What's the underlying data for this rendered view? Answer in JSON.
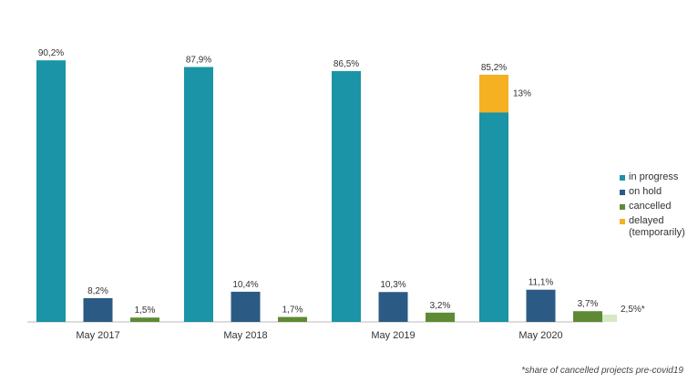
{
  "chart_data": {
    "type": "bar",
    "categories": [
      "May 2017",
      "May 2018",
      "May 2019",
      "May 2020"
    ],
    "series": [
      {
        "name": "in progress",
        "color": "#1a94a6",
        "values": [
          90.2,
          87.9,
          86.5,
          85.2
        ],
        "value_labels": [
          "90,2%",
          "87,9%",
          "86,5%",
          "85,2%"
        ]
      },
      {
        "name": "on hold",
        "color": "#2b5b84",
        "values": [
          8.2,
          10.4,
          10.3,
          11.1
        ],
        "value_labels": [
          "8,2%",
          "10,4%",
          "10,3%",
          "11,1%"
        ]
      },
      {
        "name": "cancelled",
        "color": "#5e8a35",
        "values": [
          1.5,
          1.7,
          3.2,
          3.7
        ],
        "value_labels": [
          "1,5%",
          "1,7%",
          "3,2%",
          "3,7%"
        ]
      },
      {
        "name": "delayed (temporarily)",
        "color": "#f5b122",
        "values": [
          null,
          null,
          null,
          13
        ],
        "value_labels": [
          null,
          null,
          null,
          "13%"
        ]
      },
      {
        "color": "#d6e8c4",
        "values": [
          null,
          null,
          null,
          2.5
        ],
        "value_labels": [
          null,
          null,
          null,
          "2,5%*"
        ]
      }
    ],
    "footnote": "*share of cancelled projects pre-covid19"
  }
}
